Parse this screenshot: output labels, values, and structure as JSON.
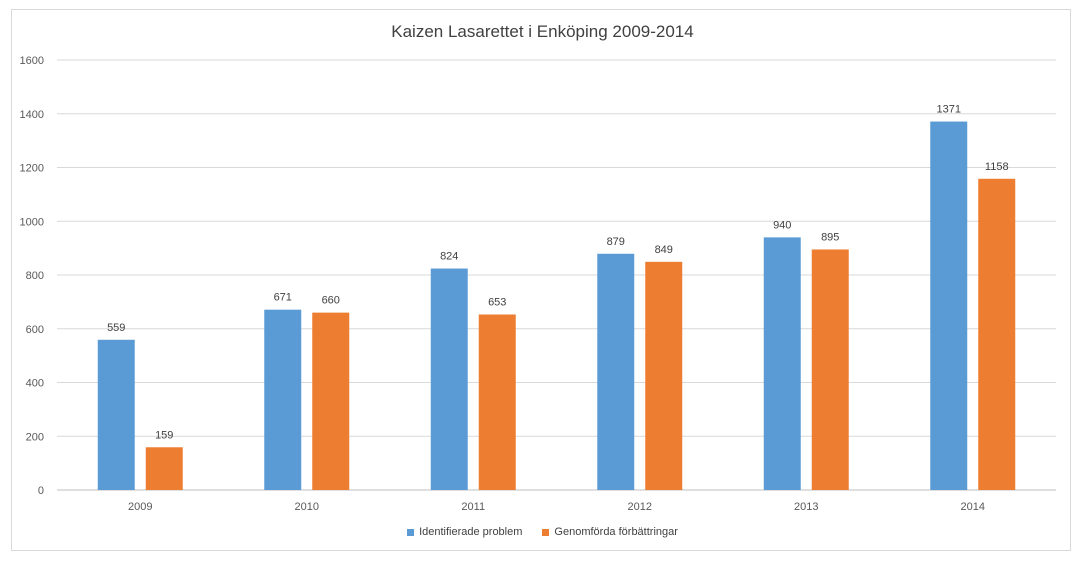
{
  "chart_data": {
    "type": "bar",
    "title": "Kaizen Lasarettet i Enköping 2009-2014",
    "xlabel": "",
    "ylabel": "",
    "categories": [
      "2009",
      "2010",
      "2011",
      "2012",
      "2013",
      "2014"
    ],
    "series": [
      {
        "name": "Identifierade problem",
        "color": "#5b9bd5",
        "values": [
          559,
          671,
          824,
          879,
          940,
          1371
        ]
      },
      {
        "name": "Genomförda förbättringar",
        "color": "#ed7d31",
        "values": [
          159,
          660,
          653,
          849,
          895,
          1158
        ]
      }
    ],
    "ylim": [
      0,
      1600
    ],
    "yticks": [
      "0",
      "200",
      "400",
      "600",
      "800",
      "1000",
      "1200",
      "1400",
      "1600"
    ],
    "grid": true,
    "data_labels": true,
    "legend_position": "bottom"
  }
}
